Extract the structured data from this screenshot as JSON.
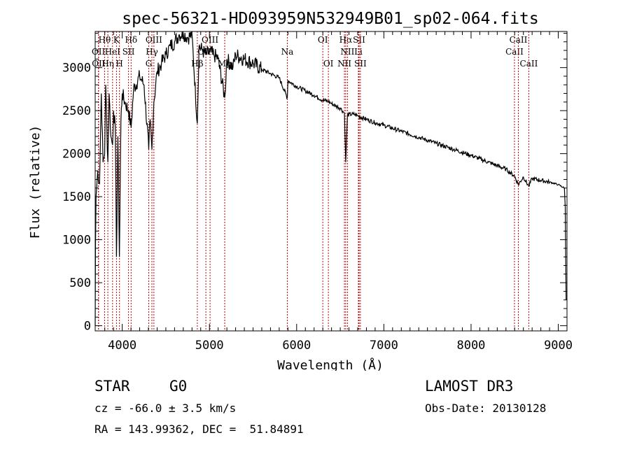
{
  "chart_data": {
    "type": "line",
    "title": "spec-56321-HD093959N532949B01_sp02-064.fits",
    "xlabel": "Wavelength (Å)",
    "ylabel": "Flux (relative)",
    "xlim": [
      3690,
      9100
    ],
    "ylim": [
      -60,
      3420
    ],
    "xticks": [
      4000,
      5000,
      6000,
      7000,
      8000,
      9000
    ],
    "yticks": [
      0,
      500,
      1000,
      1500,
      2000,
      2500,
      3000
    ],
    "grid": false,
    "line_color": "#000000",
    "marker_color": "#cc0000",
    "series": [
      {
        "name": "spectrum",
        "points": [
          [
            3690,
            0
          ],
          [
            3693,
            900
          ],
          [
            3700,
            1500
          ],
          [
            3720,
            1800
          ],
          [
            3740,
            1650
          ],
          [
            3760,
            2700
          ],
          [
            3780,
            1900
          ],
          [
            3798,
            2000
          ],
          [
            3810,
            2800
          ],
          [
            3835,
            1900
          ],
          [
            3850,
            2700
          ],
          [
            3870,
            2200
          ],
          [
            3889,
            2100
          ],
          [
            3900,
            2500
          ],
          [
            3920,
            2300
          ],
          [
            3934,
            800
          ],
          [
            3950,
            2200
          ],
          [
            3968,
            800
          ],
          [
            3985,
            2400
          ],
          [
            4000,
            2700
          ],
          [
            4030,
            2600
          ],
          [
            4072,
            2500
          ],
          [
            4102,
            2300
          ],
          [
            4130,
            2750
          ],
          [
            4200,
            2900
          ],
          [
            4250,
            2800
          ],
          [
            4304,
            2050
          ],
          [
            4320,
            2400
          ],
          [
            4340,
            2050
          ],
          [
            4363,
            2600
          ],
          [
            4400,
            2950
          ],
          [
            4450,
            3050
          ],
          [
            4500,
            3150
          ],
          [
            4550,
            3250
          ],
          [
            4600,
            3300
          ],
          [
            4650,
            3380
          ],
          [
            4700,
            3400
          ],
          [
            4750,
            3350
          ],
          [
            4800,
            3380
          ],
          [
            4861,
            2350
          ],
          [
            4880,
            3250
          ],
          [
            4920,
            3200
          ],
          [
            4959,
            3150
          ],
          [
            5007,
            3180
          ],
          [
            5050,
            3150
          ],
          [
            5100,
            3100
          ],
          [
            5175,
            2650
          ],
          [
            5200,
            3100
          ],
          [
            5270,
            3000
          ],
          [
            5300,
            3150
          ],
          [
            5400,
            3100
          ],
          [
            5500,
            3050
          ],
          [
            5600,
            2980
          ],
          [
            5700,
            2930
          ],
          [
            5800,
            2880
          ],
          [
            5893,
            2650
          ],
          [
            5900,
            2850
          ],
          [
            6000,
            2780
          ],
          [
            6100,
            2730
          ],
          [
            6200,
            2680
          ],
          [
            6300,
            2620
          ],
          [
            6364,
            2610
          ],
          [
            6400,
            2580
          ],
          [
            6500,
            2530
          ],
          [
            6548,
            2470
          ],
          [
            6563,
            1900
          ],
          [
            6583,
            2450
          ],
          [
            6650,
            2460
          ],
          [
            6700,
            2440
          ],
          [
            6800,
            2400
          ],
          [
            6900,
            2360
          ],
          [
            7000,
            2330
          ],
          [
            7200,
            2260
          ],
          [
            7400,
            2190
          ],
          [
            7600,
            2120
          ],
          [
            7800,
            2050
          ],
          [
            8000,
            1980
          ],
          [
            8200,
            1900
          ],
          [
            8400,
            1820
          ],
          [
            8498,
            1740
          ],
          [
            8542,
            1640
          ],
          [
            8600,
            1730
          ],
          [
            8662,
            1620
          ],
          [
            8700,
            1710
          ],
          [
            8800,
            1690
          ],
          [
            8900,
            1670
          ],
          [
            9000,
            1640
          ],
          [
            9070,
            1600
          ],
          [
            9080,
            1380
          ],
          [
            9090,
            300
          ]
        ]
      }
    ],
    "lines": [
      {
        "name": "OII",
        "wl": 3727,
        "row": 2
      },
      {
        "name": "OII",
        "wl": 3729,
        "row": 3
      },
      {
        "name": "Hθ",
        "wl": 3798,
        "row": 1
      },
      {
        "name": "Hη",
        "wl": 3835,
        "row": 3
      },
      {
        "name": "HeI",
        "wl": 3889,
        "row": 2
      },
      {
        "name": "K",
        "wl": 3934,
        "row": 1
      },
      {
        "name": "H",
        "wl": 3968,
        "row": 3
      },
      {
        "name": "SII",
        "wl": 4072,
        "row": 2
      },
      {
        "name": "Hδ",
        "wl": 4102,
        "row": 1
      },
      {
        "name": "G",
        "wl": 4304,
        "row": 3
      },
      {
        "name": "Hγ",
        "wl": 4340,
        "row": 2
      },
      {
        "name": "OIII",
        "wl": 4363,
        "row": 1
      },
      {
        "name": "Hβ",
        "wl": 4861,
        "row": 3
      },
      {
        "name": "OIII",
        "wl": 4959,
        "row": 2
      },
      {
        "name": "OIII",
        "wl": 5007,
        "row": 1
      },
      {
        "name": "Mg",
        "wl": 5175,
        "row": 3
      },
      {
        "name": "Na",
        "wl": 5893,
        "row": 2
      },
      {
        "name": "OI",
        "wl": 6300,
        "row": 1
      },
      {
        "name": "OI",
        "wl": 6364,
        "row": 3
      },
      {
        "name": "NII",
        "wl": 6548,
        "row": 3
      },
      {
        "name": "Hα",
        "wl": 6563,
        "row": 1
      },
      {
        "name": "NII",
        "wl": 6583,
        "row": 2
      },
      {
        "name": "Li",
        "wl": 6708,
        "row": 2
      },
      {
        "name": "SII",
        "wl": 6716,
        "row": 1
      },
      {
        "name": "SII",
        "wl": 6731,
        "row": 3
      },
      {
        "name": "CaII",
        "wl": 8498,
        "row": 2
      },
      {
        "name": "CaII",
        "wl": 8542,
        "row": 1
      },
      {
        "name": "CaII",
        "wl": 8662,
        "row": 3
      }
    ]
  },
  "info": {
    "class": "STAR",
    "subclass": "G0",
    "survey": "LAMOST DR3",
    "cz": "cz = -66.0 ± 3.5 km/s",
    "obsdate": "Obs-Date: 20130128",
    "radec": "RA = 143.99362, DEC =  51.84891"
  }
}
